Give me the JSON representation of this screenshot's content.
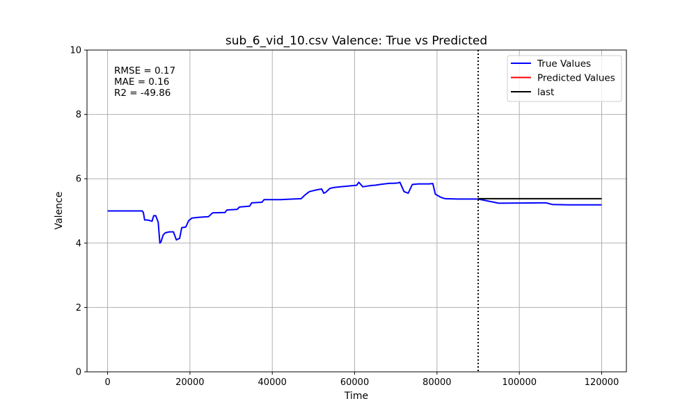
{
  "chart_data": {
    "type": "line",
    "title": "sub_6_vid_10.csv Valence: True vs Predicted",
    "xlabel": "Time",
    "ylabel": "Valence",
    "xlim": [
      -5000,
      126000
    ],
    "ylim": [
      0,
      10
    ],
    "xticks": [
      0,
      20000,
      40000,
      60000,
      80000,
      100000,
      120000
    ],
    "yticks": [
      0,
      2,
      4,
      6,
      8,
      10
    ],
    "grid": true,
    "legend_position": "top-right",
    "stats": [
      "RMSE = 0.17",
      "MAE = 0.16",
      "R2 = -49.86"
    ],
    "vline": {
      "x": 90000,
      "style": "dotted",
      "color": "#000000"
    },
    "series": [
      {
        "name": "True Values",
        "color": "#0000ff",
        "x": [
          0,
          8400,
          8700,
          9000,
          9600,
          10000,
          10800,
          11200,
          11700,
          12300,
          12700,
          13000,
          13500,
          14000,
          15000,
          16000,
          16700,
          17500,
          18000,
          19000,
          19700,
          20500,
          22000,
          24500,
          25500,
          28500,
          29000,
          31500,
          32000,
          34500,
          35000,
          37500,
          38000,
          41500,
          42000,
          45000,
          47000,
          48000,
          49000,
          51000,
          52000,
          52500,
          53000,
          54000,
          55000,
          56500,
          57500,
          59000,
          60500,
          61000,
          62000,
          63000,
          64000,
          65000,
          66500,
          68500,
          69500,
          70500,
          71000,
          72000,
          73000,
          74000,
          74500,
          75500,
          78000,
          79000,
          79600,
          81000,
          82000,
          85000,
          90000,
          95000,
          105000,
          106500,
          108000,
          112000,
          120000
        ],
        "y": [
          5.0,
          5.0,
          4.95,
          4.72,
          4.72,
          4.71,
          4.68,
          4.85,
          4.85,
          4.65,
          4.0,
          4.05,
          4.25,
          4.32,
          4.35,
          4.35,
          4.1,
          4.15,
          4.48,
          4.5,
          4.7,
          4.78,
          4.8,
          4.82,
          4.94,
          4.95,
          5.03,
          5.05,
          5.12,
          5.15,
          5.25,
          5.27,
          5.35,
          5.35,
          5.35,
          5.37,
          5.38,
          5.5,
          5.6,
          5.66,
          5.68,
          5.55,
          5.58,
          5.7,
          5.73,
          5.75,
          5.76,
          5.78,
          5.8,
          5.89,
          5.75,
          5.77,
          5.79,
          5.8,
          5.83,
          5.86,
          5.86,
          5.87,
          5.89,
          5.6,
          5.55,
          5.82,
          5.83,
          5.84,
          5.84,
          5.85,
          5.52,
          5.42,
          5.38,
          5.37,
          5.37,
          5.24,
          5.25,
          5.25,
          5.2,
          5.19,
          5.19
        ]
      },
      {
        "name": "Predicted Values",
        "color": "#ff0000",
        "x": [],
        "y": []
      },
      {
        "name": "last",
        "color": "#000000",
        "x": [
          90000,
          120000
        ],
        "y": [
          5.38,
          5.38
        ]
      }
    ]
  }
}
